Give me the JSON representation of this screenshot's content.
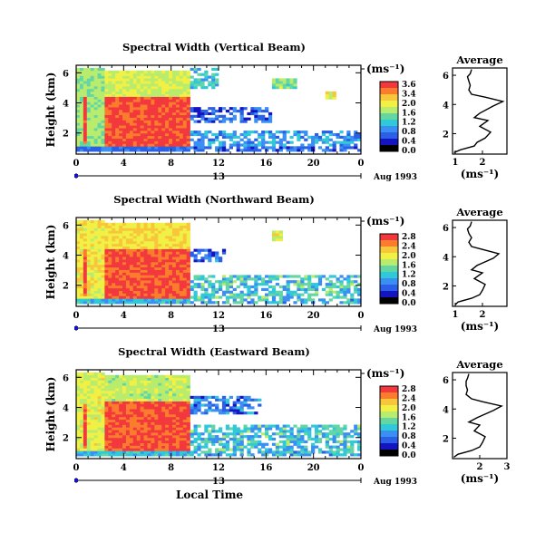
{
  "chart_data": [
    {
      "type": "heatmap",
      "title": "Spectral Width (Vertical Beam)",
      "ylabel": "Height (km)",
      "xlabel": "",
      "x_ticks": [
        "0",
        "4",
        "8",
        "12",
        "16",
        "20",
        "0"
      ],
      "y_ticks": [
        "2",
        "4",
        "6"
      ],
      "xlim": [
        0,
        24
      ],
      "ylim": [
        0.6,
        6.5
      ],
      "date_row": {
        "left": "13",
        "right": "Aug 1993"
      },
      "colorbar": {
        "unit": "(ms⁻¹)",
        "ticks": [
          "3.6",
          "3.4",
          "2.0",
          "1.6",
          "1.2",
          "0.8",
          "0.4",
          "0.0"
        ],
        "colors": [
          "#f2383c",
          "#fb7c2c",
          "#f8c63a",
          "#f1f044",
          "#b9ec6c",
          "#63d6a4",
          "#30c9d8",
          "#3b8ff2",
          "#2a5fe8",
          "#1414c0",
          "#000000"
        ]
      },
      "regions": [
        {
          "x": [
            0.0,
            24.0
          ],
          "y": [
            0.7,
            1.15
          ],
          "value": 0.5
        },
        {
          "x": [
            0.0,
            2.5
          ],
          "y": [
            1.1,
            6.3
          ],
          "value": 1.9
        },
        {
          "x": [
            2.5,
            9.5
          ],
          "y": [
            4.1,
            6.2
          ],
          "value": 2.2
        },
        {
          "x": [
            9.5,
            12.0
          ],
          "y": [
            5.0,
            6.4
          ],
          "value": 1.2
        },
        {
          "x": [
            9.5,
            16.5
          ],
          "y": [
            2.6,
            3.8
          ],
          "value": 0.45
        },
        {
          "x": [
            9.5,
            24.0
          ],
          "y": [
            1.1,
            2.2
          ],
          "value": 0.85
        },
        {
          "x": [
            0.5,
            1.0
          ],
          "y": [
            1.3,
            4.5
          ],
          "value": 3.5
        },
        {
          "x": [
            2.5,
            9.5
          ],
          "y": [
            1.1,
            4.4
          ],
          "value": 3.5
        },
        {
          "x": [
            16.5,
            18.5
          ],
          "y": [
            5.0,
            5.6
          ],
          "value": 1.8
        },
        {
          "x": [
            21.0,
            22.0
          ],
          "y": [
            4.3,
            4.7
          ],
          "value": 2.4
        }
      ],
      "average": {
        "title": "Average",
        "xlabel": "(ms⁻¹)",
        "x_ticks": [
          "1",
          "2"
        ],
        "xlim": [
          0.9,
          2.9
        ],
        "ylim": [
          0.6,
          6.5
        ],
        "y_ticks": [
          "2",
          "4",
          "6"
        ],
        "x": [
          0.95,
          1.2,
          1.7,
          1.8,
          2.1,
          2.3,
          1.9,
          2.2,
          1.7,
          1.9,
          2.4,
          2.75,
          2.1,
          1.6,
          1.5,
          1.55,
          1.5,
          1.45,
          1.55,
          1.6
        ],
        "y": [
          0.7,
          0.9,
          1.15,
          1.4,
          1.7,
          2.1,
          2.5,
          2.9,
          3.1,
          3.4,
          3.9,
          4.2,
          4.5,
          4.7,
          5.0,
          5.3,
          5.6,
          5.9,
          6.1,
          6.4
        ]
      }
    },
    {
      "type": "heatmap",
      "title": "Spectral Width (Northward Beam)",
      "ylabel": "Height (km)",
      "xlabel": "",
      "x_ticks": [
        "0",
        "4",
        "8",
        "12",
        "16",
        "20",
        "0"
      ],
      "y_ticks": [
        "2",
        "4",
        "6"
      ],
      "xlim": [
        0,
        24
      ],
      "ylim": [
        0.6,
        6.5
      ],
      "date_row": {
        "left": "13",
        "right": "Aug 1993"
      },
      "colorbar": {
        "unit": "(ms⁻¹)",
        "ticks": [
          "2.8",
          "2.4",
          "2.0",
          "1.6",
          "1.2",
          "0.8",
          "0.4",
          "0.0"
        ],
        "colors": [
          "#f2383c",
          "#fb7c2c",
          "#f8c63a",
          "#f1f044",
          "#b9ec6c",
          "#63d6a4",
          "#30c9d8",
          "#3b8ff2",
          "#2a5fe8",
          "#1414c0",
          "#000000"
        ]
      },
      "regions": [
        {
          "x": [
            0.0,
            24.0
          ],
          "y": [
            0.7,
            1.15
          ],
          "value": 0.9
        },
        {
          "x": [
            0.0,
            2.5
          ],
          "y": [
            1.1,
            6.3
          ],
          "value": 1.9
        },
        {
          "x": [
            2.5,
            9.5
          ],
          "y": [
            4.1,
            6.2
          ],
          "value": 2.0
        },
        {
          "x": [
            9.5,
            12.5
          ],
          "y": [
            3.6,
            4.5
          ],
          "value": 0.45
        },
        {
          "x": [
            9.5,
            24.0
          ],
          "y": [
            1.1,
            2.6
          ],
          "value": 1.0
        },
        {
          "x": [
            2.5,
            9.5
          ],
          "y": [
            1.1,
            4.4
          ],
          "value": 2.7
        },
        {
          "x": [
            0.5,
            1.0
          ],
          "y": [
            1.3,
            4.5
          ],
          "value": 2.7
        },
        {
          "x": [
            16.5,
            17.5
          ],
          "y": [
            5.0,
            5.6
          ],
          "value": 1.8
        }
      ],
      "average": {
        "title": "Average",
        "xlabel": "(ms⁻¹)",
        "x_ticks": [
          "1",
          "2"
        ],
        "xlim": [
          0.9,
          2.9
        ],
        "ylim": [
          0.6,
          6.5
        ],
        "y_ticks": [
          "2",
          "4",
          "6"
        ],
        "x": [
          1.0,
          1.1,
          1.6,
          1.9,
          2.0,
          2.1,
          1.7,
          2.0,
          1.6,
          1.8,
          2.4,
          2.6,
          2.0,
          1.6,
          1.5,
          1.6,
          1.5,
          1.45,
          1.55,
          1.6
        ],
        "y": [
          0.7,
          0.9,
          1.15,
          1.4,
          1.7,
          2.1,
          2.5,
          2.9,
          3.1,
          3.4,
          3.9,
          4.2,
          4.5,
          4.7,
          5.0,
          5.3,
          5.6,
          5.9,
          6.1,
          6.4
        ]
      }
    },
    {
      "type": "heatmap",
      "title": "Spectral Width (Eastward Beam)",
      "ylabel": "Height (km)",
      "xlabel": "Local Time",
      "x_ticks": [
        "0",
        "4",
        "8",
        "12",
        "16",
        "20",
        "0"
      ],
      "y_ticks": [
        "2",
        "4",
        "6"
      ],
      "xlim": [
        0,
        24
      ],
      "ylim": [
        0.6,
        6.5
      ],
      "date_row": {
        "left": "13",
        "right": "Aug 1993"
      },
      "colorbar": {
        "unit": "(ms⁻¹)",
        "ticks": [
          "2.8",
          "2.4",
          "2.0",
          "1.6",
          "1.2",
          "0.8",
          "0.4",
          "0.0"
        ],
        "colors": [
          "#f2383c",
          "#fb7c2c",
          "#f8c63a",
          "#f1f044",
          "#b9ec6c",
          "#63d6a4",
          "#30c9d8",
          "#3b8ff2",
          "#2a5fe8",
          "#1414c0",
          "#000000"
        ]
      },
      "regions": [
        {
          "x": [
            0.0,
            24.0
          ],
          "y": [
            0.7,
            1.15
          ],
          "value": 0.9
        },
        {
          "x": [
            0.0,
            2.5
          ],
          "y": [
            1.1,
            6.3
          ],
          "value": 1.8
        },
        {
          "x": [
            2.5,
            9.5
          ],
          "y": [
            4.4,
            6.2
          ],
          "value": 1.6
        },
        {
          "x": [
            9.5,
            15.5
          ],
          "y": [
            3.6,
            4.7
          ],
          "value": 0.45
        },
        {
          "x": [
            9.5,
            24.0
          ],
          "y": [
            1.1,
            2.8
          ],
          "value": 1.0
        },
        {
          "x": [
            2.5,
            9.5
          ],
          "y": [
            1.1,
            4.4
          ],
          "value": 2.7
        },
        {
          "x": [
            0.5,
            1.0
          ],
          "y": [
            1.3,
            4.2
          ],
          "value": 2.7
        }
      ],
      "average": {
        "title": "Average",
        "xlabel": "(ms⁻¹)",
        "x_ticks": [
          "2",
          "3"
        ],
        "xlim": [
          1.0,
          3.0
        ],
        "ylim": [
          0.6,
          6.5
        ],
        "y_ticks": [
          "2",
          "4",
          "6"
        ],
        "x": [
          1.05,
          1.2,
          1.7,
          2.0,
          2.1,
          2.2,
          1.8,
          2.0,
          1.6,
          1.9,
          2.5,
          2.8,
          2.1,
          1.7,
          1.5,
          1.55,
          1.5,
          1.5,
          1.55,
          1.6
        ],
        "y": [
          0.7,
          0.9,
          1.15,
          1.4,
          1.7,
          2.1,
          2.5,
          2.9,
          3.1,
          3.4,
          3.9,
          4.2,
          4.5,
          4.7,
          5.0,
          5.3,
          5.6,
          5.9,
          6.1,
          6.4
        ]
      }
    }
  ]
}
